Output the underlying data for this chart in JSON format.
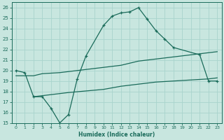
{
  "xlabel": "Humidex (Indice chaleur)",
  "background_color": "#c8e6df",
  "grid_color": "#a8d4cc",
  "line_color": "#1a6b5a",
  "xlim": [
    -0.5,
    23.5
  ],
  "ylim": [
    15,
    26.5
  ],
  "x_ticks": [
    0,
    1,
    2,
    3,
    4,
    5,
    6,
    7,
    8,
    9,
    10,
    11,
    12,
    13,
    14,
    15,
    16,
    17,
    18,
    19,
    20,
    21,
    22,
    23
  ],
  "y_ticks": [
    15,
    16,
    17,
    18,
    19,
    20,
    21,
    22,
    23,
    24,
    25,
    26
  ],
  "series": {
    "main": {
      "x": [
        0,
        1,
        2,
        3,
        4,
        5,
        6,
        7,
        8,
        10,
        11,
        12,
        13,
        14,
        15,
        16,
        17,
        18,
        21,
        22,
        23
      ],
      "y": [
        20.0,
        19.8,
        17.5,
        17.5,
        16.4,
        15.0,
        15.8,
        19.2,
        21.4,
        24.3,
        25.2,
        25.5,
        25.6,
        26.0,
        24.9,
        23.8,
        23.0,
        22.2,
        21.5,
        19.0,
        19.0
      ]
    },
    "line1": {
      "x": [
        0,
        2,
        3,
        5,
        12,
        14,
        16,
        18,
        20,
        22,
        23
      ],
      "y": [
        19.5,
        19.5,
        19.7,
        19.8,
        20.5,
        20.9,
        21.1,
        21.3,
        21.5,
        21.7,
        21.8
      ]
    },
    "line2": {
      "x": [
        2,
        3,
        4,
        5,
        6,
        10,
        12,
        14,
        16,
        18,
        20,
        22,
        23
      ],
      "y": [
        17.5,
        17.6,
        17.7,
        17.8,
        17.9,
        18.2,
        18.5,
        18.7,
        18.9,
        19.0,
        19.1,
        19.2,
        19.3
      ]
    }
  }
}
